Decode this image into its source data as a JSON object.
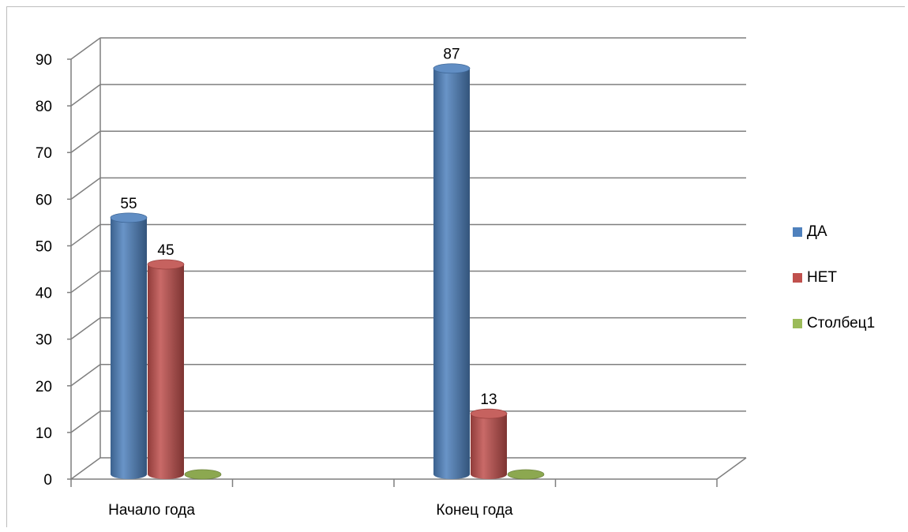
{
  "chart_data": {
    "type": "bar",
    "categories": [
      "Начало года",
      "Конец года"
    ],
    "series": [
      {
        "name": "ДА",
        "values": [
          55,
          87
        ],
        "color": "#4F81BD"
      },
      {
        "name": "НЕТ",
        "values": [
          45,
          13
        ],
        "color": "#C0504D"
      },
      {
        "name": "Столбец1",
        "values": [
          0,
          0
        ],
        "color": "#9BBB59"
      }
    ],
    "ylim": [
      0,
      90
    ],
    "yticks": [
      "0",
      "10",
      "20",
      "30",
      "40",
      "50",
      "60",
      "70",
      "80",
      "90"
    ],
    "grid": true,
    "legend_position": "right",
    "style": "3d-cylinder"
  }
}
